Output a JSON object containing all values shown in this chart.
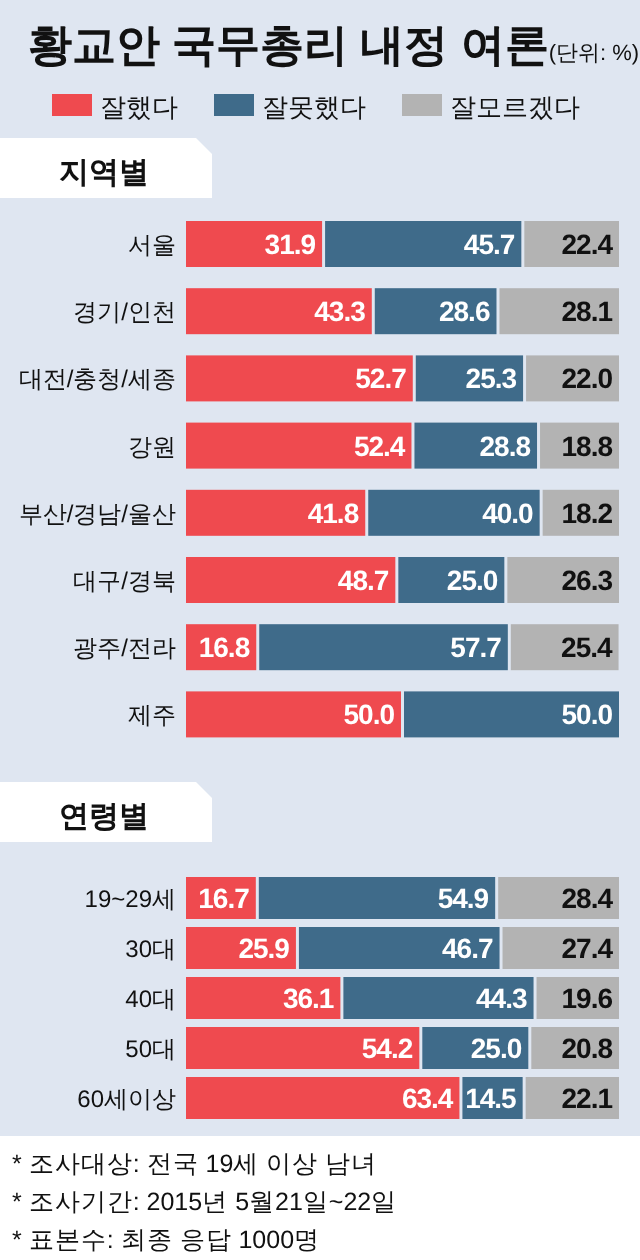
{
  "chart_data": [
    {
      "type": "bar",
      "orientation": "horizontal",
      "stacked": true,
      "title": "황교안 국무총리 내정 여론",
      "subtitle": "(단위: %)",
      "ylabel": "지역별",
      "legend": "top",
      "categories": [
        "서울",
        "경기/인천",
        "대전/충청/세종",
        "강원",
        "부산/경남/울산",
        "대구/경북",
        "광주/전라",
        "제주"
      ],
      "series": [
        {
          "name": "잘했다",
          "color": "#ef4a4f",
          "values": [
            31.9,
            43.3,
            52.7,
            52.4,
            41.8,
            48.7,
            16.8,
            50.0
          ],
          "value_labels": [
            "31.9",
            "43.3",
            "52.7",
            "52.4",
            "41.8",
            "48.7",
            "16.8",
            "50.0"
          ]
        },
        {
          "name": "잘못했다",
          "color": "#3f6b8a",
          "values": [
            45.7,
            28.6,
            25.3,
            28.8,
            40.0,
            25.0,
            57.7,
            50.0
          ],
          "value_labels": [
            "45.7",
            "28.6",
            "25.3",
            "28.8",
            "40.0",
            "25.0",
            "57.7",
            "50.0"
          ]
        },
        {
          "name": "잘모르겠다",
          "color": "#b3b3b3",
          "values": [
            22.4,
            28.1,
            22.0,
            18.8,
            18.2,
            26.3,
            25.4,
            null
          ],
          "value_labels": [
            "22.4",
            "28.1",
            "22.0",
            "18.8",
            "18.2",
            "26.3",
            "25.4",
            null
          ]
        }
      ]
    },
    {
      "type": "bar",
      "orientation": "horizontal",
      "stacked": true,
      "ylabel": "연령별",
      "categories": [
        "19~29세",
        "30대",
        "40대",
        "50대",
        "60세이상"
      ],
      "series": [
        {
          "color": "#ef4a4f",
          "values": [
            16.7,
            25.9,
            36.1,
            54.2,
            63.4
          ],
          "value_labels": [
            "16.7",
            "25.9",
            "36.1",
            "54.2",
            "63.4"
          ]
        },
        {
          "color": "#3f6b8a",
          "values": [
            54.9,
            46.7,
            44.3,
            25.0,
            14.5
          ],
          "value_labels": [
            "54.9",
            "46.7",
            "44.3",
            "25.0",
            "14.5"
          ]
        },
        {
          "color": "#b3b3b3",
          "values": [
            28.4,
            27.4,
            19.6,
            20.8,
            22.1
          ],
          "value_labels": [
            "28.4",
            "27.4",
            "19.6",
            "20.8",
            "22.1"
          ]
        }
      ],
      "annotations": [
        "* 조사대상: 전국 19세 이상 남녀",
        "* 조사기간: 2015년 5월21일~22일",
        "* 표본수: 최종 응답 1000명"
      ]
    }
  ]
}
